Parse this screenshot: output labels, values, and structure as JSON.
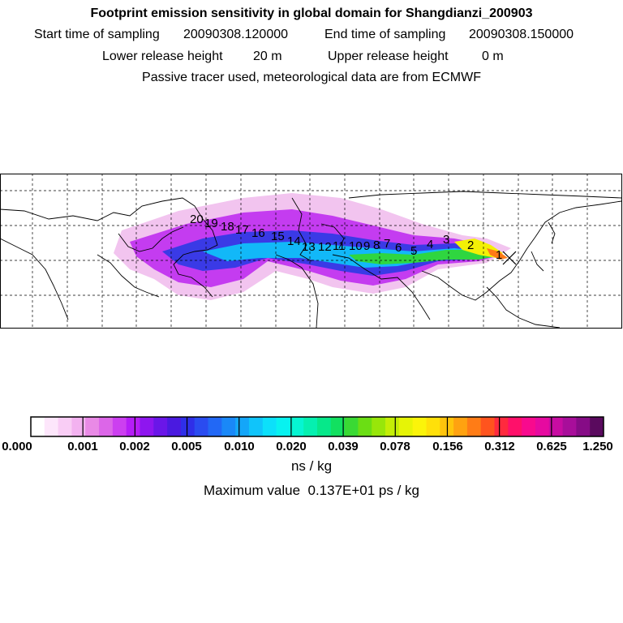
{
  "header": {
    "title": "Footprint emission sensitivity in global domain for Shangdianzi_200903",
    "start_label": "Start time of sampling",
    "start_value": "20090308.120000",
    "end_label": "End time of sampling",
    "end_value": "20090308.150000",
    "lower_label": "Lower release height",
    "lower_value": "20 m",
    "upper_label": "Upper release height",
    "upper_value": "0 m",
    "note": "Passive tracer used, meteorological data are from ECMWF"
  },
  "map": {
    "trajectory_labels": [
      "1",
      "2",
      "3",
      "4",
      "5",
      "6",
      "7",
      "8",
      "9",
      "10",
      "11",
      "12",
      "13",
      "14",
      "15",
      "16",
      "17",
      "18",
      "19",
      "20"
    ]
  },
  "colorbar": {
    "tick_labels": [
      "0.000",
      "0.001",
      "0.002",
      "0.005",
      "0.010",
      "0.020",
      "0.039",
      "0.078",
      "0.156",
      "0.312",
      "0.625",
      "1.250"
    ],
    "colors": [
      "#ffffff",
      "#fde6fb",
      "#f9cdf5",
      "#f3b2f0",
      "#e98ae6",
      "#dc66e8",
      "#cc3ff0",
      "#b51df7",
      "#8e16ef",
      "#6a16e8",
      "#4a1ae0",
      "#2f2fe8",
      "#2a4cf0",
      "#2268f5",
      "#1a88f7",
      "#14a6f9",
      "#10c4fa",
      "#0ce0fa",
      "#08f2f0",
      "#06f5d2",
      "#05f0b0",
      "#06e88a",
      "#12e060",
      "#3ad934",
      "#6bde14",
      "#98e60a",
      "#c4ee06",
      "#e6f406",
      "#fbf40a",
      "#ffe00a",
      "#ffc40c",
      "#ffa210",
      "#ff7c16",
      "#ff541e",
      "#ff2a3e",
      "#ff106a",
      "#f80a8e",
      "#e60aa0",
      "#c80ca2",
      "#a80e9a",
      "#860c86",
      "#5a0a5e"
    ],
    "units": "ns / kg",
    "max_label": "Maximum value",
    "max_value": "0.137E+01 ps / kg"
  }
}
